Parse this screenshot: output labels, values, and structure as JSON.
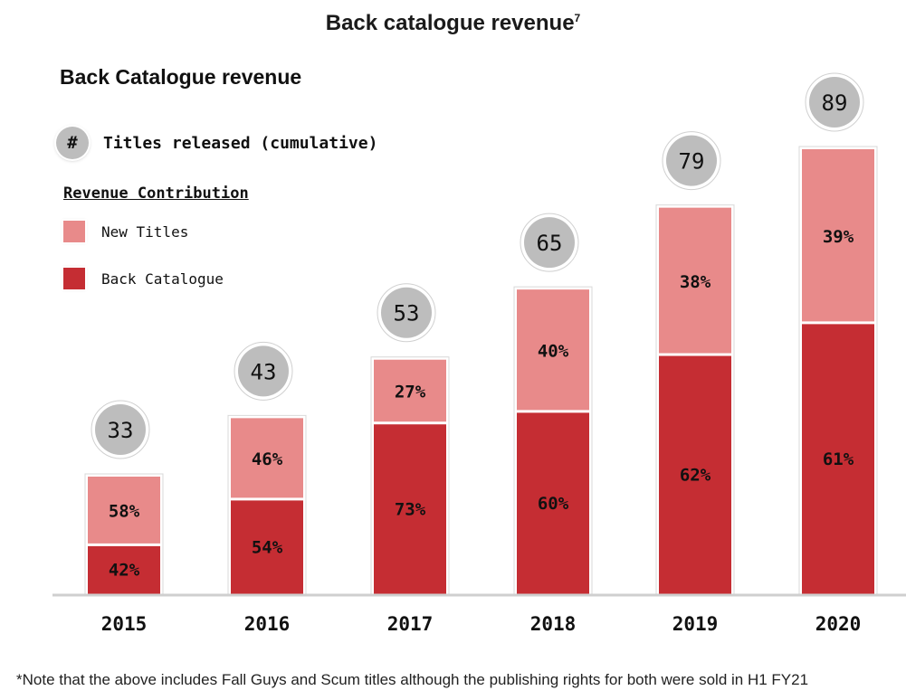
{
  "page_title": "Back catalogue revenue",
  "page_title_sup": "7",
  "legend": {
    "titles_symbol": "#",
    "titles_label": "Titles released (cumulative)",
    "revenue_heading": "Revenue Contribution",
    "new_titles_label": "New Titles",
    "back_catalogue_label": "Back Catalogue"
  },
  "colors": {
    "new_titles": "#e88a8a",
    "back_catalogue": "#c52d33",
    "badge": "#bdbdbd",
    "axis": "#cfcfcf"
  },
  "chart_data": {
    "type": "bar",
    "stacked": true,
    "title": "Back Catalogue revenue",
    "categories": [
      "2015",
      "2016",
      "2017",
      "2018",
      "2019",
      "2020"
    ],
    "series": [
      {
        "name": "Back Catalogue",
        "values": [
          42,
          54,
          73,
          60,
          62,
          61
        ],
        "labels": [
          "42%",
          "54%",
          "73%",
          "60%",
          "62%",
          "61%"
        ]
      },
      {
        "name": "New Titles",
        "values": [
          58,
          46,
          27,
          40,
          38,
          39
        ],
        "labels": [
          "58%",
          "46%",
          "27%",
          "40%",
          "38%",
          "39%"
        ]
      }
    ],
    "titles_released_cumulative": [
      33,
      43,
      53,
      65,
      79,
      89
    ],
    "legend_position": "top-left",
    "grid": false
  },
  "footnote": "*Note that the above includes Fall Guys and Scum titles although the publishing rights for both were sold in H1 FY21"
}
